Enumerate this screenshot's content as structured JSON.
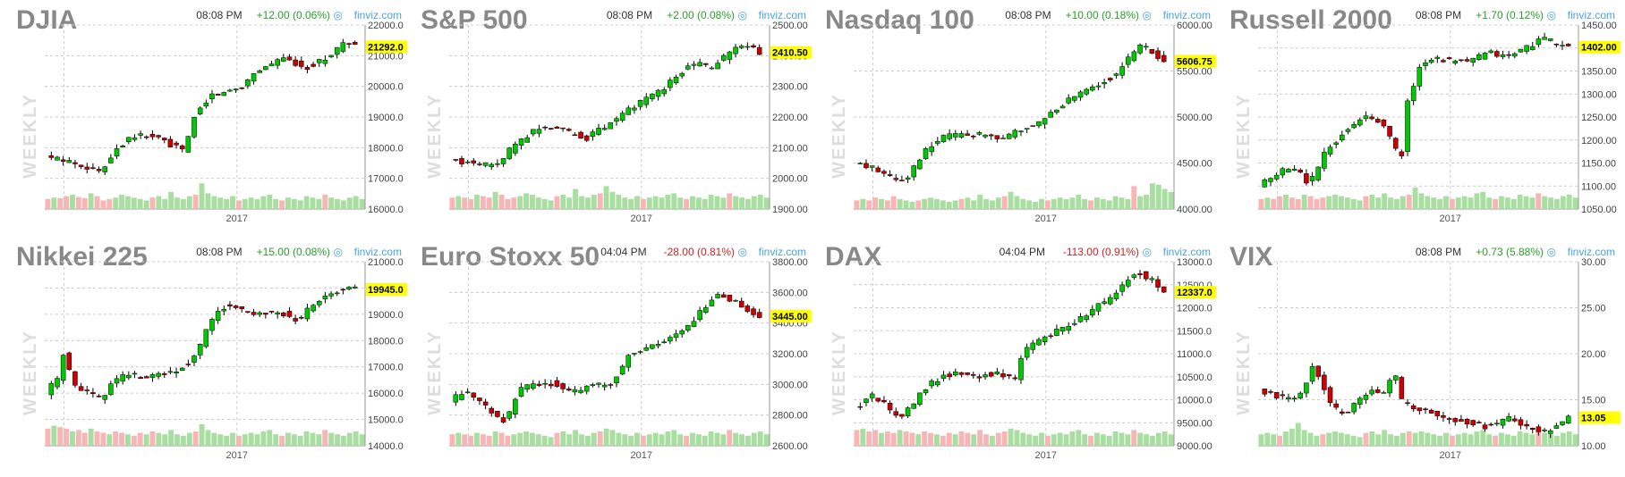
{
  "chart_data": [
    {
      "type": "candlestick",
      "title": "DJIA",
      "time": "08:08 PM",
      "change": "+12.00 (0.06%)",
      "change_direction": "up",
      "source": "finviz.com",
      "watermark": "WEEKLY",
      "x_label": "2017",
      "y_ticks": [
        "22000.0",
        "21000.0",
        "20000.0",
        "19000.0",
        "18000.0",
        "17000.0",
        "16000.0"
      ],
      "ylim": [
        16000,
        22000
      ],
      "last_value": "21292.0",
      "trend": [
        [
          0,
          17700
        ],
        [
          10,
          17500
        ],
        [
          18,
          17200
        ],
        [
          22,
          17900
        ],
        [
          28,
          18400
        ],
        [
          36,
          18350
        ],
        [
          40,
          18100
        ],
        [
          45,
          17900
        ],
        [
          48,
          19000
        ],
        [
          53,
          19700
        ],
        [
          58,
          19800
        ],
        [
          64,
          20050
        ],
        [
          68,
          20500
        ],
        [
          72,
          20700
        ],
        [
          76,
          20900
        ],
        [
          80,
          20800
        ],
        [
          84,
          20600
        ],
        [
          88,
          20800
        ],
        [
          92,
          21000
        ],
        [
          96,
          21400
        ],
        [
          100,
          21300
        ]
      ],
      "volumes": [
        0.35,
        0.4,
        0.38,
        0.45,
        0.5,
        0.42,
        0.38,
        0.55,
        0.45,
        0.3,
        0.35,
        0.4,
        0.5,
        0.45,
        0.4,
        0.35,
        0.3,
        0.4,
        0.45,
        0.35,
        0.6,
        0.4,
        0.35,
        0.45,
        0.5,
        0.9,
        0.55,
        0.45,
        0.4,
        0.35,
        0.45,
        0.3,
        0.35,
        0.4,
        0.35,
        0.45,
        0.5,
        0.35,
        0.3,
        0.4,
        0.35,
        0.3,
        0.45,
        0.4,
        0.35,
        0.5,
        0.4,
        0.35,
        0.3,
        0.4,
        0.45,
        0.35
      ],
      "volume_red_until": 0.18
    },
    {
      "type": "candlestick",
      "title": "S&P 500",
      "time": "08:08 PM",
      "change": "+2.00 (0.08%)",
      "change_direction": "up",
      "source": "finviz.com",
      "watermark": "WEEKLY",
      "x_label": "2017",
      "y_ticks": [
        "2500.00",
        "2400.00",
        "2300.00",
        "2200.00",
        "2100.00",
        "2000.00",
        "1900.00"
      ],
      "ylim": [
        1900,
        2500
      ],
      "last_value": "2410.50",
      "trend": [
        [
          0,
          2060
        ],
        [
          8,
          2050
        ],
        [
          15,
          2040
        ],
        [
          20,
          2100
        ],
        [
          26,
          2150
        ],
        [
          32,
          2170
        ],
        [
          38,
          2150
        ],
        [
          44,
          2130
        ],
        [
          50,
          2170
        ],
        [
          55,
          2200
        ],
        [
          60,
          2240
        ],
        [
          66,
          2270
        ],
        [
          72,
          2320
        ],
        [
          76,
          2360
        ],
        [
          80,
          2380
        ],
        [
          84,
          2360
        ],
        [
          88,
          2390
        ],
        [
          92,
          2420
        ],
        [
          96,
          2430
        ],
        [
          100,
          2410
        ]
      ],
      "volumes": [
        0.4,
        0.45,
        0.4,
        0.35,
        0.5,
        0.45,
        0.4,
        0.6,
        0.5,
        0.35,
        0.4,
        0.45,
        0.55,
        0.5,
        0.4,
        0.35,
        0.3,
        0.45,
        0.5,
        0.4,
        0.7,
        0.45,
        0.4,
        0.5,
        0.55,
        0.8,
        0.6,
        0.5,
        0.4,
        0.35,
        0.45,
        0.35,
        0.4,
        0.45,
        0.4,
        0.5,
        0.55,
        0.4,
        0.35,
        0.45,
        0.4,
        0.35,
        0.5,
        0.45,
        0.4,
        0.55,
        0.45,
        0.4,
        0.35,
        0.45,
        0.5,
        0.4
      ],
      "volume_red_until": 0.18
    },
    {
      "type": "candlestick",
      "title": "Nasdaq 100",
      "time": "08:08 PM",
      "change": "+10.00 (0.18%)",
      "change_direction": "up",
      "source": "finviz.com",
      "watermark": "WEEKLY",
      "x_label": "2017",
      "y_ticks": [
        "6000.00",
        "5500.00",
        "5000.00",
        "4500.00",
        "4000.00"
      ],
      "ylim": [
        4000,
        6000
      ],
      "last_value": "5606.75",
      "trend": [
        [
          0,
          4500
        ],
        [
          6,
          4450
        ],
        [
          12,
          4350
        ],
        [
          16,
          4300
        ],
        [
          20,
          4500
        ],
        [
          26,
          4750
        ],
        [
          32,
          4800
        ],
        [
          38,
          4820
        ],
        [
          44,
          4800
        ],
        [
          48,
          4780
        ],
        [
          54,
          4850
        ],
        [
          60,
          4950
        ],
        [
          66,
          5100
        ],
        [
          72,
          5250
        ],
        [
          78,
          5350
        ],
        [
          84,
          5450
        ],
        [
          88,
          5600
        ],
        [
          92,
          5800
        ],
        [
          96,
          5700
        ],
        [
          100,
          5606
        ]
      ],
      "volumes": [
        0.3,
        0.35,
        0.3,
        0.4,
        0.35,
        0.3,
        0.45,
        0.35,
        0.3,
        0.25,
        0.3,
        0.35,
        0.4,
        0.35,
        0.3,
        0.25,
        0.3,
        0.35,
        0.4,
        0.3,
        0.5,
        0.35,
        0.3,
        0.4,
        0.45,
        0.6,
        0.45,
        0.35,
        0.3,
        0.25,
        0.35,
        0.3,
        0.35,
        0.4,
        0.35,
        0.4,
        0.5,
        0.35,
        0.3,
        0.4,
        0.35,
        0.3,
        0.45,
        0.4,
        0.35,
        0.8,
        0.45,
        0.5,
        0.9,
        0.85,
        0.7,
        0.6
      ],
      "volume_red_until": 0.12
    },
    {
      "type": "candlestick",
      "title": "Russell 2000",
      "time": "08:08 PM",
      "change": "+1.70 (0.12%)",
      "change_direction": "up",
      "source": "finviz.com",
      "watermark": "WEEKLY",
      "x_label": "2017",
      "y_ticks": [
        "1450.00",
        "1400.00",
        "1350.00",
        "1300.00",
        "1250.00",
        "1200.00",
        "1150.00",
        "1100.00",
        "1050.00"
      ],
      "ylim": [
        1050,
        1450
      ],
      "last_value": "1402.00",
      "trend": [
        [
          0,
          1100
        ],
        [
          6,
          1130
        ],
        [
          12,
          1140
        ],
        [
          16,
          1100
        ],
        [
          22,
          1180
        ],
        [
          28,
          1220
        ],
        [
          34,
          1250
        ],
        [
          40,
          1240
        ],
        [
          44,
          1180
        ],
        [
          46,
          1160
        ],
        [
          48,
          1280
        ],
        [
          52,
          1360
        ],
        [
          56,
          1380
        ],
        [
          62,
          1370
        ],
        [
          68,
          1370
        ],
        [
          74,
          1390
        ],
        [
          80,
          1380
        ],
        [
          86,
          1400
        ],
        [
          92,
          1420
        ],
        [
          96,
          1410
        ],
        [
          100,
          1402
        ]
      ],
      "volumes": [
        0.35,
        0.4,
        0.35,
        0.45,
        0.5,
        0.4,
        0.35,
        0.5,
        0.45,
        0.35,
        0.4,
        0.45,
        0.5,
        0.45,
        0.4,
        0.35,
        0.3,
        0.45,
        0.5,
        0.4,
        0.55,
        0.4,
        0.35,
        0.45,
        0.5,
        0.75,
        0.55,
        0.45,
        0.4,
        0.35,
        0.45,
        0.35,
        0.4,
        0.45,
        0.4,
        0.55,
        0.6,
        0.4,
        0.35,
        0.45,
        0.4,
        0.35,
        0.5,
        0.45,
        0.4,
        0.55,
        0.45,
        0.4,
        0.35,
        0.45,
        0.5,
        0.4
      ],
      "volume_red_until": 0.18
    },
    {
      "type": "candlestick",
      "title": "Nikkei 225",
      "time": "08:08 PM",
      "change": "+15.00 (0.08%)",
      "change_direction": "up",
      "source": "finviz.com",
      "watermark": "WEEKLY",
      "x_label": "2017",
      "y_ticks": [
        "21000.0",
        "20000.0",
        "19000.0",
        "18000.0",
        "17000.0",
        "16000.0",
        "15000.0",
        "14000.0"
      ],
      "ylim": [
        14000,
        21000
      ],
      "last_value": "19945.0",
      "trend": [
        [
          0,
          16000
        ],
        [
          4,
          16600
        ],
        [
          6,
          17600
        ],
        [
          9,
          16300
        ],
        [
          14,
          16100
        ],
        [
          18,
          15800
        ],
        [
          22,
          16500
        ],
        [
          28,
          16700
        ],
        [
          34,
          16600
        ],
        [
          40,
          16800
        ],
        [
          46,
          17100
        ],
        [
          50,
          17800
        ],
        [
          54,
          18900
        ],
        [
          58,
          19300
        ],
        [
          64,
          19200
        ],
        [
          70,
          19000
        ],
        [
          76,
          19100
        ],
        [
          82,
          18700
        ],
        [
          86,
          19400
        ],
        [
          92,
          19800
        ],
        [
          96,
          20000
        ],
        [
          100,
          19945
        ]
      ],
      "volumes": [
        0.6,
        0.7,
        0.65,
        0.6,
        0.5,
        0.55,
        0.45,
        0.6,
        0.5,
        0.45,
        0.4,
        0.5,
        0.45,
        0.4,
        0.35,
        0.45,
        0.4,
        0.5,
        0.45,
        0.4,
        0.55,
        0.4,
        0.35,
        0.45,
        0.5,
        0.75,
        0.55,
        0.45,
        0.4,
        0.35,
        0.45,
        0.35,
        0.4,
        0.45,
        0.4,
        0.5,
        0.55,
        0.4,
        0.35,
        0.45,
        0.4,
        0.35,
        0.5,
        0.45,
        0.4,
        0.55,
        0.45,
        0.4,
        0.35,
        0.45,
        0.5,
        0.4
      ],
      "volume_red_until": 0.3
    },
    {
      "type": "candlestick",
      "title": "Euro Stoxx 50",
      "time": "04:04 PM",
      "change": "-28.00 (0.81%)",
      "change_direction": "down",
      "source": "finviz.com",
      "watermark": "WEEKLY",
      "x_label": "2017",
      "y_ticks": [
        "3800.00",
        "3600.00",
        "3400.00",
        "3200.00",
        "3000.00",
        "2800.00",
        "2600.00"
      ],
      "ylim": [
        2600,
        3800
      ],
      "last_value": "3445.00",
      "trend": [
        [
          0,
          2900
        ],
        [
          6,
          2950
        ],
        [
          10,
          2880
        ],
        [
          14,
          2820
        ],
        [
          18,
          2750
        ],
        [
          22,
          2960
        ],
        [
          28,
          3000
        ],
        [
          34,
          3010
        ],
        [
          40,
          2950
        ],
        [
          46,
          3000
        ],
        [
          52,
          3000
        ],
        [
          58,
          3200
        ],
        [
          64,
          3250
        ],
        [
          70,
          3280
        ],
        [
          76,
          3350
        ],
        [
          82,
          3500
        ],
        [
          86,
          3600
        ],
        [
          90,
          3560
        ],
        [
          94,
          3520
        ],
        [
          100,
          3445
        ]
      ],
      "volumes": [
        0.4,
        0.45,
        0.4,
        0.35,
        0.45,
        0.4,
        0.35,
        0.5,
        0.45,
        0.35,
        0.4,
        0.45,
        0.5,
        0.45,
        0.4,
        0.35,
        0.3,
        0.45,
        0.5,
        0.4,
        0.55,
        0.4,
        0.35,
        0.45,
        0.5,
        0.6,
        0.55,
        0.45,
        0.4,
        0.35,
        0.45,
        0.35,
        0.4,
        0.45,
        0.4,
        0.5,
        0.55,
        0.4,
        0.35,
        0.45,
        0.4,
        0.35,
        0.5,
        0.45,
        0.4,
        0.55,
        0.45,
        0.4,
        0.35,
        0.45,
        0.5,
        0.4
      ],
      "volume_red_until": 0.2
    },
    {
      "type": "candlestick",
      "title": "DAX",
      "time": "04:04 PM",
      "change": "-113.00 (0.91%)",
      "change_direction": "down",
      "source": "finviz.com",
      "watermark": "WEEKLY",
      "x_label": "2017",
      "y_ticks": [
        "13000.0",
        "12500.0",
        "12000.0",
        "11500.0",
        "11000.0",
        "10500.0",
        "10000.0",
        "9500.00",
        "9000.00"
      ],
      "ylim": [
        9000,
        13000
      ],
      "last_value": "12337.0",
      "trend": [
        [
          0,
          9800
        ],
        [
          6,
          10100
        ],
        [
          10,
          9900
        ],
        [
          14,
          9600
        ],
        [
          18,
          9800
        ],
        [
          22,
          10200
        ],
        [
          28,
          10500
        ],
        [
          34,
          10600
        ],
        [
          40,
          10500
        ],
        [
          46,
          10600
        ],
        [
          52,
          10400
        ],
        [
          54,
          11000
        ],
        [
          60,
          11300
        ],
        [
          66,
          11500
        ],
        [
          72,
          11700
        ],
        [
          78,
          12000
        ],
        [
          84,
          12300
        ],
        [
          88,
          12600
        ],
        [
          92,
          12750
        ],
        [
          96,
          12600
        ],
        [
          100,
          12337
        ]
      ],
      "volumes": [
        0.55,
        0.6,
        0.5,
        0.55,
        0.45,
        0.5,
        0.45,
        0.55,
        0.5,
        0.45,
        0.4,
        0.5,
        0.45,
        0.4,
        0.35,
        0.45,
        0.4,
        0.5,
        0.45,
        0.4,
        0.55,
        0.4,
        0.35,
        0.45,
        0.5,
        0.6,
        0.55,
        0.45,
        0.4,
        0.35,
        0.45,
        0.35,
        0.4,
        0.45,
        0.4,
        0.5,
        0.55,
        0.4,
        0.35,
        0.45,
        0.4,
        0.35,
        0.5,
        0.45,
        0.4,
        0.55,
        0.45,
        0.4,
        0.35,
        0.45,
        0.5,
        0.4
      ],
      "volume_red_until": 0.45
    },
    {
      "type": "candlestick",
      "title": "VIX",
      "time": "08:08 PM",
      "change": "+0.73 (5.88%)",
      "change_direction": "up",
      "source": "finviz.com",
      "watermark": "WEEKLY",
      "x_label": "2017",
      "y_ticks": [
        "30.00",
        "25.00",
        "20.00",
        "15.00",
        "10.00"
      ],
      "ylim": [
        10,
        30
      ],
      "last_value": "13.05",
      "trend": [
        [
          0,
          16
        ],
        [
          5,
          15.5
        ],
        [
          10,
          15
        ],
        [
          14,
          16
        ],
        [
          18,
          19
        ],
        [
          20,
          17
        ],
        [
          24,
          14
        ],
        [
          28,
          13.5
        ],
        [
          32,
          15
        ],
        [
          36,
          16
        ],
        [
          40,
          15.5
        ],
        [
          44,
          18
        ],
        [
          46,
          15
        ],
        [
          50,
          14
        ],
        [
          56,
          13.5
        ],
        [
          62,
          13
        ],
        [
          68,
          12.5
        ],
        [
          74,
          12
        ],
        [
          80,
          13
        ],
        [
          86,
          12
        ],
        [
          92,
          11.5
        ],
        [
          96,
          12
        ],
        [
          100,
          13.05
        ]
      ],
      "volumes": [
        0.4,
        0.45,
        0.4,
        0.35,
        0.5,
        0.6,
        0.8,
        0.55,
        0.45,
        0.35,
        0.4,
        0.45,
        0.5,
        0.45,
        0.4,
        0.35,
        0.3,
        0.45,
        0.5,
        0.4,
        0.55,
        0.4,
        0.35,
        0.45,
        0.5,
        0.45,
        0.5,
        0.45,
        0.4,
        0.35,
        0.45,
        0.35,
        0.4,
        0.45,
        0.4,
        0.5,
        0.55,
        0.4,
        0.35,
        0.45,
        0.4,
        0.35,
        0.5,
        0.45,
        0.4,
        0.55,
        0.45,
        0.4,
        0.35,
        0.45,
        0.5,
        0.4
      ],
      "volume_red_until": 0.0
    }
  ],
  "colors": {
    "up_candle": "#00c800",
    "down_candle": "#cc0000",
    "wick": "#000000",
    "grid": "#cccccc",
    "volume_up": "#a8dfa0",
    "volume_down": "#f7b5b5",
    "change_up": "#2aa02a",
    "change_down": "#d22222",
    "last_value_bg": "#ffff00",
    "title": "#888888",
    "source": "#4aa3df"
  }
}
